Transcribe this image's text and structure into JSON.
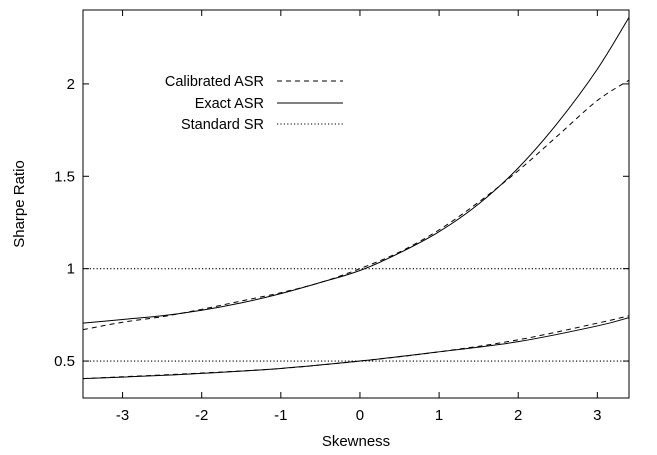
{
  "chart_data": {
    "type": "line",
    "xlabel": "Skewness",
    "ylabel": "Sharpe Ratio",
    "xlim": [
      -3.5,
      3.4
    ],
    "ylim": [
      0.3,
      2.4
    ],
    "xticks": [
      -3,
      -2,
      -1,
      0,
      1,
      2,
      3
    ],
    "yticks": [
      0.5,
      1,
      1.5,
      2
    ],
    "grid": false,
    "legend_position": "top-left",
    "series": [
      {
        "name": "Calibrated ASR",
        "style": "dashed",
        "curves": [
          [
            [
              -3.5,
              0.67
            ],
            [
              -3,
              0.71
            ],
            [
              -2.5,
              0.74
            ],
            [
              -2,
              0.78
            ],
            [
              -1.5,
              0.825
            ],
            [
              -1,
              0.87
            ],
            [
              -0.5,
              0.925
            ],
            [
              0,
              1.0
            ],
            [
              0.5,
              1.09
            ],
            [
              1,
              1.21
            ],
            [
              1.5,
              1.36
            ],
            [
              2,
              1.53
            ],
            [
              2.5,
              1.72
            ],
            [
              3,
              1.91
            ],
            [
              3.4,
              2.02
            ]
          ],
          [
            [
              -3.5,
              0.405
            ],
            [
              -3,
              0.415
            ],
            [
              -2,
              0.435
            ],
            [
              -1,
              0.46
            ],
            [
              0,
              0.5
            ],
            [
              1,
              0.55
            ],
            [
              2,
              0.615
            ],
            [
              3,
              0.705
            ],
            [
              3.4,
              0.745
            ]
          ]
        ]
      },
      {
        "name": "Exact ASR",
        "style": "solid",
        "curves": [
          [
            [
              -3.5,
              0.705
            ],
            [
              -3,
              0.725
            ],
            [
              -2.5,
              0.745
            ],
            [
              -2,
              0.775
            ],
            [
              -1.5,
              0.815
            ],
            [
              -1,
              0.865
            ],
            [
              -0.5,
              0.925
            ],
            [
              0,
              0.99
            ],
            [
              0.5,
              1.085
            ],
            [
              1,
              1.2
            ],
            [
              1.5,
              1.35
            ],
            [
              2,
              1.545
            ],
            [
              2.5,
              1.79
            ],
            [
              3,
              2.08
            ],
            [
              3.4,
              2.36
            ]
          ],
          [
            [
              -3.5,
              0.405
            ],
            [
              -3,
              0.413
            ],
            [
              -2,
              0.433
            ],
            [
              -1,
              0.46
            ],
            [
              0,
              0.5
            ],
            [
              1,
              0.55
            ],
            [
              2,
              0.605
            ],
            [
              3,
              0.69
            ],
            [
              3.4,
              0.735
            ]
          ]
        ]
      },
      {
        "name": "Standard SR",
        "style": "dotted",
        "curves": [
          [
            [
              -3.5,
              1.0
            ],
            [
              3.4,
              1.0
            ]
          ],
          [
            [
              -3.5,
              0.5
            ],
            [
              3.4,
              0.5
            ]
          ]
        ]
      }
    ]
  }
}
